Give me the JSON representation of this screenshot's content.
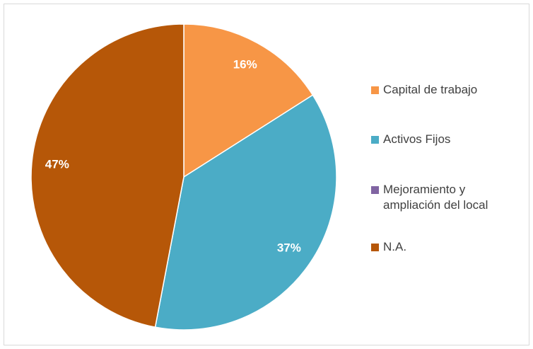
{
  "chart_data": {
    "type": "pie",
    "categories": [
      "Capital de trabajo",
      "Activos Fijos",
      "Mejoramiento y ampliación del local",
      "N.A."
    ],
    "values": [
      16,
      37,
      0,
      47
    ],
    "value_labels": [
      "16%",
      "37%",
      null,
      "47%"
    ],
    "colors": [
      "#f79646",
      "#4bacc6",
      "#8064a2",
      "#b65708"
    ],
    "legend": "right"
  }
}
